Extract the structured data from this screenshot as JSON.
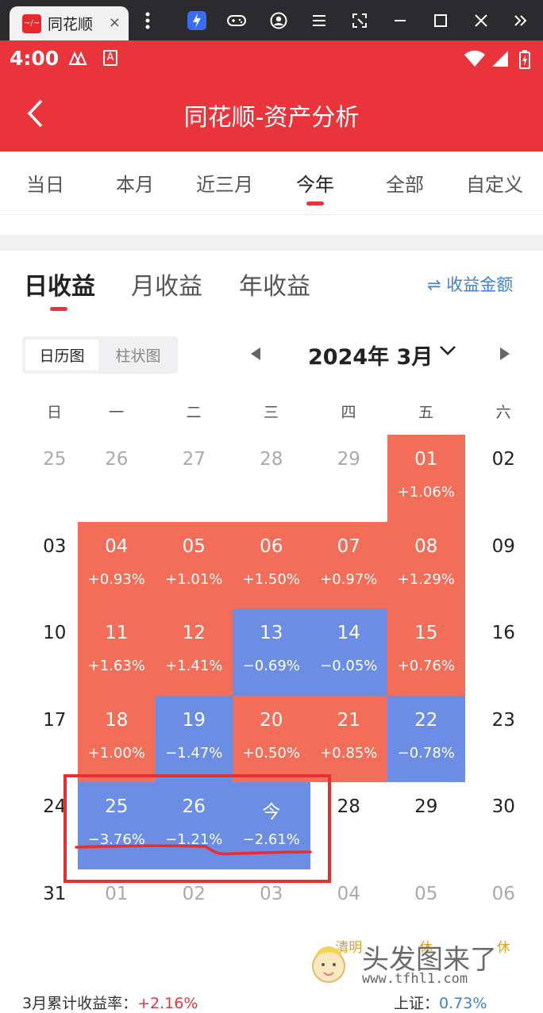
{
  "tabbar": {
    "tab_logo": "~/~",
    "tab_title": "同花顺",
    "close": "×",
    "icons": [
      "more-vert-icon",
      "bolt-icon",
      "gamepad-icon",
      "account-icon",
      "menu-icon",
      "screenshot-icon",
      "minimize-icon",
      "maximize-icon",
      "close-window-icon",
      "expand-icon"
    ]
  },
  "status": {
    "time": "4:00",
    "ic_a": "A"
  },
  "header": {
    "title": "同花顺-资产分析"
  },
  "period_tabs": {
    "items": [
      "当日",
      "本月",
      "近三月",
      "今年",
      "全部",
      "自定义"
    ],
    "active": "今年"
  },
  "income_tabs": {
    "items": [
      "日收益",
      "月收益",
      "年收益"
    ],
    "active": "日收益",
    "amount_link": "⇌ 收益金额"
  },
  "view_toggle": {
    "calendar": "日历图",
    "bar": "柱状图",
    "active": "日历图"
  },
  "month_nav": {
    "label": "2024年 3月"
  },
  "calendar": {
    "weekdays": [
      "日",
      "一",
      "二",
      "三",
      "四",
      "五",
      "六"
    ],
    "rows": [
      [
        {
          "day": "25",
          "type": "other"
        },
        {
          "day": "26",
          "type": "other"
        },
        {
          "day": "27",
          "type": "other"
        },
        {
          "day": "28",
          "type": "other"
        },
        {
          "day": "29",
          "type": "other"
        },
        {
          "day": "01",
          "type": "up",
          "pct": "+1.06%"
        },
        {
          "day": "02",
          "type": "plain"
        }
      ],
      [
        {
          "day": "03",
          "type": "plain"
        },
        {
          "day": "04",
          "type": "up",
          "pct": "+0.93%"
        },
        {
          "day": "05",
          "type": "up",
          "pct": "+1.01%"
        },
        {
          "day": "06",
          "type": "up",
          "pct": "+1.50%"
        },
        {
          "day": "07",
          "type": "up",
          "pct": "+0.97%"
        },
        {
          "day": "08",
          "type": "up",
          "pct": "+1.29%"
        },
        {
          "day": "09",
          "type": "plain"
        }
      ],
      [
        {
          "day": "10",
          "type": "plain"
        },
        {
          "day": "11",
          "type": "up",
          "pct": "+1.63%"
        },
        {
          "day": "12",
          "type": "up",
          "pct": "+1.41%"
        },
        {
          "day": "13",
          "type": "down",
          "pct": "−0.69%"
        },
        {
          "day": "14",
          "type": "down",
          "pct": "−0.05%"
        },
        {
          "day": "15",
          "type": "up",
          "pct": "+0.76%"
        },
        {
          "day": "16",
          "type": "plain"
        }
      ],
      [
        {
          "day": "17",
          "type": "plain"
        },
        {
          "day": "18",
          "type": "up",
          "pct": "+1.00%"
        },
        {
          "day": "19",
          "type": "down",
          "pct": "−1.47%"
        },
        {
          "day": "20",
          "type": "up",
          "pct": "+0.50%"
        },
        {
          "day": "21",
          "type": "up",
          "pct": "+0.85%"
        },
        {
          "day": "22",
          "type": "down",
          "pct": "−0.78%"
        },
        {
          "day": "23",
          "type": "plain"
        }
      ],
      [
        {
          "day": "24",
          "type": "plain"
        },
        {
          "day": "25",
          "type": "down",
          "pct": "−3.76%"
        },
        {
          "day": "26",
          "type": "down",
          "pct": "−1.21%"
        },
        {
          "day": "今",
          "type": "down",
          "pct": "−2.61%"
        },
        {
          "day": "28",
          "type": "plain"
        },
        {
          "day": "29",
          "type": "plain"
        },
        {
          "day": "30",
          "type": "plain"
        }
      ],
      [
        {
          "day": "31",
          "type": "plain"
        },
        {
          "day": "01",
          "type": "other"
        },
        {
          "day": "02",
          "type": "other"
        },
        {
          "day": "03",
          "type": "other"
        },
        {
          "day": "04",
          "type": "other",
          "holiday": "清明"
        },
        {
          "day": "05",
          "type": "other",
          "holiday": "休"
        },
        {
          "day": "06",
          "type": "other",
          "holiday": "休"
        }
      ]
    ]
  },
  "summary": {
    "label": "3月累计收益率：",
    "value": "+2.16%"
  },
  "index": {
    "label": "上证：",
    "value": "0.73%"
  },
  "watermark": {
    "title": "头发图来了",
    "url": "www.tfhl1.com"
  },
  "colors": {
    "brand_red": "#e9343b",
    "up": "#f36e59",
    "down": "#6b8de3",
    "link_blue": "#3b82d6",
    "annotation_red": "#e53030"
  }
}
